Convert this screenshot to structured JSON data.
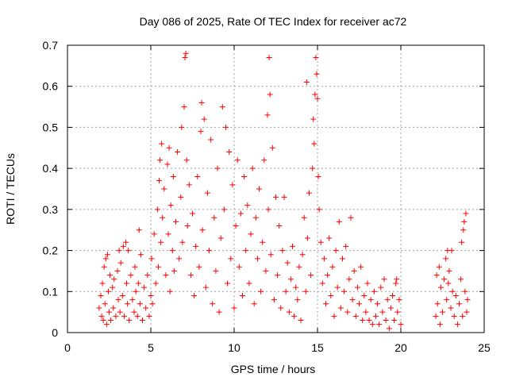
{
  "chart_data": {
    "type": "scatter",
    "title": "Day 086 of 2025, Rate Of TEC Index for receiver ac72",
    "xlabel": "GPS time / hours",
    "ylabel": "ROTI / TECUs",
    "xlim": [
      0,
      25
    ],
    "ylim": [
      0,
      0.7
    ],
    "xticks": [
      0,
      5,
      10,
      15,
      20,
      25
    ],
    "yticks": [
      0,
      0.1,
      0.2,
      0.3,
      0.4,
      0.5,
      0.6,
      0.7
    ],
    "xtick_labels": [
      "0",
      "5",
      "10",
      "15",
      "20",
      "25"
    ],
    "ytick_labels": [
      "0",
      "0.1",
      "0.2",
      "0.3",
      "0.4",
      "0.5",
      "0.6",
      "0.7"
    ],
    "grid": true,
    "marker": "+",
    "color": "#ff0000",
    "series": [
      {
        "points": [
          [
            1.9,
            0.06
          ],
          [
            2.0,
            0.09
          ],
          [
            2.05,
            0.04
          ],
          [
            2.1,
            0.12
          ],
          [
            2.15,
            0.03
          ],
          [
            2.2,
            0.16
          ],
          [
            2.25,
            0.07
          ],
          [
            2.3,
            0.18
          ],
          [
            2.35,
            0.02
          ],
          [
            2.4,
            0.19
          ],
          [
            2.45,
            0.1
          ],
          [
            2.5,
            0.05
          ],
          [
            2.55,
            0.14
          ],
          [
            2.6,
            0.03
          ],
          [
            2.7,
            0.11
          ],
          [
            2.75,
            0.06
          ],
          [
            2.8,
            0.13
          ],
          [
            2.9,
            0.04
          ],
          [
            3.0,
            0.15
          ],
          [
            3.05,
            0.08
          ],
          [
            3.1,
            0.2
          ],
          [
            3.15,
            0.05
          ],
          [
            3.2,
            0.17
          ],
          [
            3.3,
            0.09
          ],
          [
            3.35,
            0.21
          ],
          [
            3.4,
            0.04
          ],
          [
            3.5,
            0.22
          ],
          [
            3.55,
            0.12
          ],
          [
            3.6,
            0.07
          ],
          [
            3.65,
            0.2
          ],
          [
            3.7,
            0.03
          ],
          [
            3.8,
            0.14
          ],
          [
            3.9,
            0.08
          ],
          [
            4.0,
            0.05
          ],
          [
            4.05,
            0.16
          ],
          [
            4.1,
            0.1
          ],
          [
            4.2,
            0.04
          ],
          [
            4.25,
            0.12
          ],
          [
            4.3,
            0.25
          ],
          [
            4.35,
            0.07
          ],
          [
            4.4,
            0.19
          ],
          [
            4.5,
            0.03
          ],
          [
            4.6,
            0.11
          ],
          [
            4.7,
            0.06
          ],
          [
            4.8,
            0.14
          ],
          [
            4.9,
            0.04
          ],
          [
            5.0,
            0.09
          ],
          [
            5.05,
            0.18
          ],
          [
            5.1,
            0.07
          ],
          [
            5.2,
            0.24
          ],
          [
            5.3,
            0.12
          ],
          [
            5.4,
            0.3
          ],
          [
            5.45,
            0.16
          ],
          [
            5.5,
            0.37
          ],
          [
            5.55,
            0.42
          ],
          [
            5.6,
            0.22
          ],
          [
            5.65,
            0.46
          ],
          [
            5.7,
            0.28
          ],
          [
            5.8,
            0.35
          ],
          [
            5.9,
            0.14
          ],
          [
            6.0,
            0.41
          ],
          [
            6.05,
            0.24
          ],
          [
            6.1,
            0.45
          ],
          [
            6.15,
            0.1
          ],
          [
            6.2,
            0.31
          ],
          [
            6.3,
            0.2
          ],
          [
            6.35,
            0.38
          ],
          [
            6.4,
            0.15
          ],
          [
            6.5,
            0.27
          ],
          [
            6.6,
            0.44
          ],
          [
            6.7,
            0.18
          ],
          [
            6.8,
            0.33
          ],
          [
            6.85,
            0.5
          ],
          [
            6.9,
            0.22
          ],
          [
            7.0,
            0.55
          ],
          [
            7.05,
            0.67
          ],
          [
            7.1,
            0.68
          ],
          [
            7.15,
            0.42
          ],
          [
            7.2,
            0.26
          ],
          [
            7.3,
            0.36
          ],
          [
            7.4,
            0.14
          ],
          [
            7.5,
            0.29
          ],
          [
            7.6,
            0.09
          ],
          [
            7.7,
            0.21
          ],
          [
            7.8,
            0.38
          ],
          [
            7.9,
            0.16
          ],
          [
            8.0,
            0.49
          ],
          [
            8.05,
            0.56
          ],
          [
            8.1,
            0.25
          ],
          [
            8.2,
            0.52
          ],
          [
            8.3,
            0.11
          ],
          [
            8.4,
            0.34
          ],
          [
            8.5,
            0.2
          ],
          [
            8.6,
            0.47
          ],
          [
            8.7,
            0.07
          ],
          [
            8.8,
            0.28
          ],
          [
            8.9,
            0.15
          ],
          [
            9.0,
            0.4
          ],
          [
            9.1,
            0.05
          ],
          [
            9.2,
            0.23
          ],
          [
            9.3,
            0.55
          ],
          [
            9.4,
            0.3
          ],
          [
            9.5,
            0.5
          ],
          [
            9.6,
            0.12
          ],
          [
            9.7,
            0.44
          ],
          [
            9.8,
            0.18
          ],
          [
            9.9,
            0.36
          ],
          [
            10.0,
            0.06
          ],
          [
            10.1,
            0.26
          ],
          [
            10.2,
            0.42
          ],
          [
            10.3,
            0.16
          ],
          [
            10.4,
            0.29
          ],
          [
            10.5,
            0.09
          ],
          [
            10.6,
            0.38
          ],
          [
            10.7,
            0.2
          ],
          [
            10.8,
            0.31
          ],
          [
            10.9,
            0.12
          ],
          [
            11.0,
            0.24
          ],
          [
            11.1,
            0.4
          ],
          [
            11.2,
            0.07
          ],
          [
            11.3,
            0.28
          ],
          [
            11.4,
            0.18
          ],
          [
            11.5,
            0.35
          ],
          [
            11.6,
            0.1
          ],
          [
            11.7,
            0.22
          ],
          [
            11.8,
            0.42
          ],
          [
            11.9,
            0.15
          ],
          [
            12.0,
            0.53
          ],
          [
            12.05,
            0.3
          ],
          [
            12.1,
            0.67
          ],
          [
            12.15,
            0.58
          ],
          [
            12.2,
            0.19
          ],
          [
            12.3,
            0.45
          ],
          [
            12.4,
            0.08
          ],
          [
            12.5,
            0.33
          ],
          [
            12.6,
            0.14
          ],
          [
            12.7,
            0.26
          ],
          [
            12.8,
            0.06
          ],
          [
            12.9,
            0.2
          ],
          [
            13.0,
            0.33
          ],
          [
            13.1,
            0.1
          ],
          [
            13.2,
            0.17
          ],
          [
            13.3,
            0.05
          ],
          [
            13.4,
            0.13
          ],
          [
            13.5,
            0.21
          ],
          [
            13.6,
            0.04
          ],
          [
            13.7,
            0.11
          ],
          [
            13.8,
            0.08
          ],
          [
            13.9,
            0.16
          ],
          [
            14.0,
            0.03
          ],
          [
            14.1,
            0.19
          ],
          [
            14.2,
            0.28
          ],
          [
            14.3,
            0.1
          ],
          [
            14.35,
            0.61
          ],
          [
            14.4,
            0.23
          ],
          [
            14.5,
            0.34
          ],
          [
            14.6,
            0.14
          ],
          [
            14.7,
            0.4
          ],
          [
            14.75,
            0.52
          ],
          [
            14.8,
            0.46
          ],
          [
            14.85,
            0.58
          ],
          [
            14.9,
            0.67
          ],
          [
            14.95,
            0.63
          ],
          [
            15.0,
            0.57
          ],
          [
            15.05,
            0.38
          ],
          [
            15.1,
            0.3
          ],
          [
            15.2,
            0.22
          ],
          [
            15.3,
            0.12
          ],
          [
            15.4,
            0.18
          ],
          [
            15.5,
            0.07
          ],
          [
            15.6,
            0.14
          ],
          [
            15.7,
            0.23
          ],
          [
            15.8,
            0.09
          ],
          [
            15.9,
            0.16
          ],
          [
            16.0,
            0.04
          ],
          [
            16.1,
            0.2
          ],
          [
            16.2,
            0.11
          ],
          [
            16.3,
            0.27
          ],
          [
            16.4,
            0.06
          ],
          [
            16.5,
            0.18
          ],
          [
            16.6,
            0.1
          ],
          [
            16.7,
            0.21
          ],
          [
            16.8,
            0.05
          ],
          [
            16.9,
            0.13
          ],
          [
            17.0,
            0.28
          ],
          [
            17.1,
            0.08
          ],
          [
            17.2,
            0.15
          ],
          [
            17.3,
            0.04
          ],
          [
            17.4,
            0.11
          ],
          [
            17.5,
            0.07
          ],
          [
            17.6,
            0.16
          ],
          [
            17.7,
            0.03
          ],
          [
            17.8,
            0.09
          ],
          [
            17.9,
            0.05
          ],
          [
            18.0,
            0.12
          ],
          [
            18.1,
            0.03
          ],
          [
            18.2,
            0.08
          ],
          [
            18.3,
            0.02
          ],
          [
            18.4,
            0.1
          ],
          [
            18.5,
            0.04
          ],
          [
            18.6,
            0.07
          ],
          [
            18.7,
            0.02
          ],
          [
            18.8,
            0.11
          ],
          [
            18.9,
            0.05
          ],
          [
            19.0,
            0.13
          ],
          [
            19.1,
            0.03
          ],
          [
            19.2,
            0.08
          ],
          [
            19.3,
            0.01
          ],
          [
            19.4,
            0.06
          ],
          [
            19.5,
            0.09
          ],
          [
            19.6,
            0.03
          ],
          [
            19.7,
            0.12
          ],
          [
            19.75,
            0.13
          ],
          [
            19.8,
            0.05
          ],
          [
            19.9,
            0.08
          ],
          [
            20.0,
            0.02
          ],
          [
            22.1,
            0.04
          ],
          [
            22.15,
            0.14
          ],
          [
            22.2,
            0.07
          ],
          [
            22.3,
            0.16
          ],
          [
            22.35,
            0.02
          ],
          [
            22.4,
            0.11
          ],
          [
            22.5,
            0.05
          ],
          [
            22.6,
            0.13
          ],
          [
            22.7,
            0.18
          ],
          [
            22.75,
            0.08
          ],
          [
            22.8,
            0.2
          ],
          [
            22.85,
            0.12
          ],
          [
            22.9,
            0.15
          ],
          [
            23.0,
            0.06
          ],
          [
            23.05,
            0.2
          ],
          [
            23.1,
            0.1
          ],
          [
            23.2,
            0.04
          ],
          [
            23.3,
            0.09
          ],
          [
            23.4,
            0.02
          ],
          [
            23.5,
            0.07
          ],
          [
            23.6,
            0.13
          ],
          [
            23.65,
            0.22
          ],
          [
            23.7,
            0.04
          ],
          [
            23.75,
            0.25
          ],
          [
            23.8,
            0.27
          ],
          [
            23.85,
            0.1
          ],
          [
            23.9,
            0.29
          ],
          [
            23.95,
            0.05
          ],
          [
            24.0,
            0.08
          ]
        ]
      }
    ]
  }
}
